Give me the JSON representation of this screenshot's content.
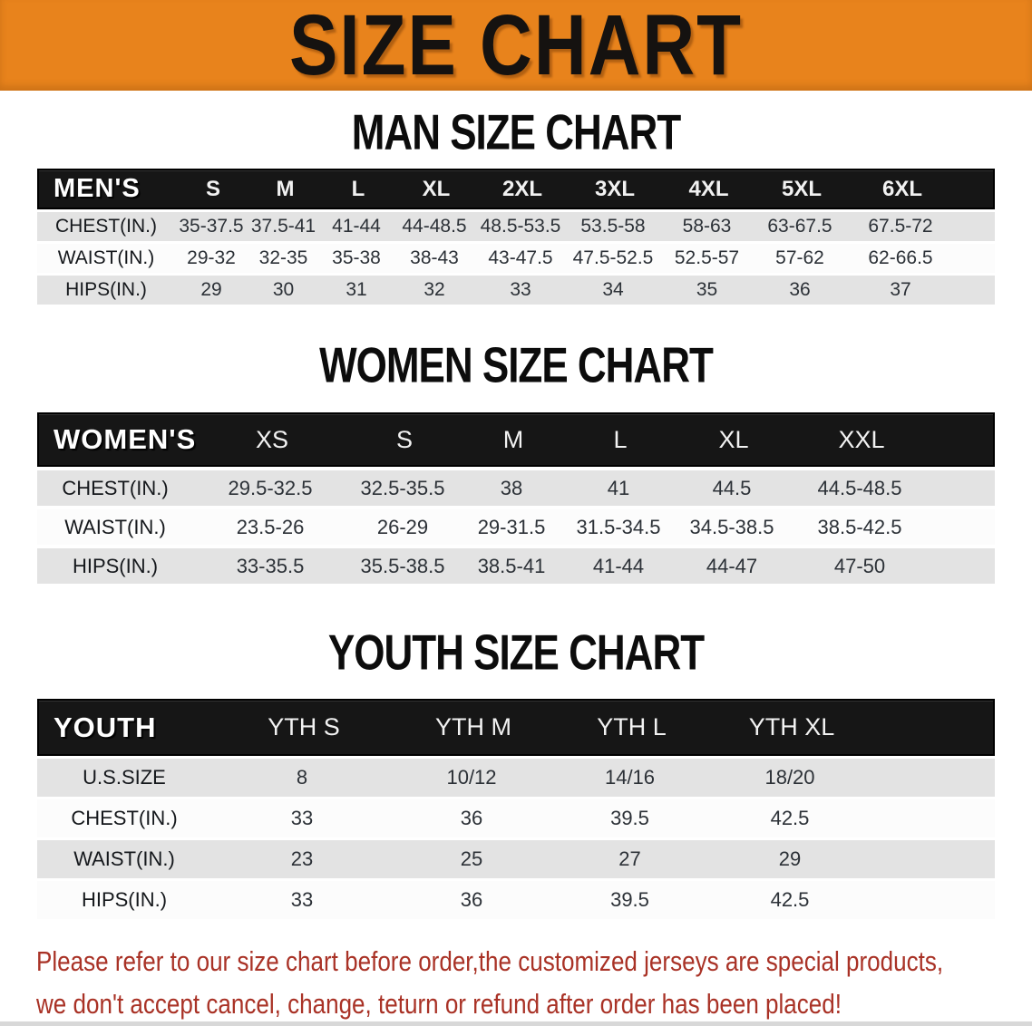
{
  "banner": {
    "title": "SIZE CHART"
  },
  "sections": [
    {
      "id": "men",
      "heading": "MAN SIZE CHART",
      "label": "MEN'S",
      "columns": [
        "S",
        "M",
        "L",
        "XL",
        "2XL",
        "3XL",
        "4XL",
        "5XL",
        "6XL"
      ],
      "rows": [
        {
          "label": "CHEST(IN.)",
          "values": [
            "35-37.5",
            "37.5-41",
            "41-44",
            "44-48.5",
            "48.5-53.5",
            "53.5-58",
            "58-63",
            "63-67.5",
            "67.5-72"
          ]
        },
        {
          "label": "WAIST(IN.)",
          "values": [
            "29-32",
            "32-35",
            "35-38",
            "38-43",
            "43-47.5",
            "47.5-52.5",
            "52.5-57",
            "57-62",
            "62-66.5"
          ]
        },
        {
          "label": "HIPS(IN.)",
          "values": [
            "29",
            "30",
            "31",
            "32",
            "33",
            "34",
            "35",
            "36",
            "37"
          ]
        }
      ]
    },
    {
      "id": "women",
      "heading": "WOMEN SIZE CHART",
      "label": "WOMEN'S",
      "columns": [
        "XS",
        "S",
        "M",
        "L",
        "XL",
        "XXL"
      ],
      "rows": [
        {
          "label": "CHEST(IN.)",
          "values": [
            "29.5-32.5",
            "32.5-35.5",
            "38",
            "41",
            "44.5",
            "44.5-48.5"
          ]
        },
        {
          "label": "WAIST(IN.)",
          "values": [
            "23.5-26",
            "26-29",
            "29-31.5",
            "31.5-34.5",
            "34.5-38.5",
            "38.5-42.5"
          ]
        },
        {
          "label": "HIPS(IN.)",
          "values": [
            "33-35.5",
            "35.5-38.5",
            "38.5-41",
            "41-44",
            "44-47",
            "47-50"
          ]
        }
      ]
    },
    {
      "id": "youth",
      "heading": "YOUTH SIZE CHART",
      "label": "YOUTH",
      "columns": [
        "YTH S",
        "YTH M",
        "YTH L",
        "YTH XL"
      ],
      "rows": [
        {
          "label": "U.S.SIZE",
          "values": [
            "8",
            "10/12",
            "14/16",
            "18/20"
          ]
        },
        {
          "label": "CHEST(IN.)",
          "values": [
            "33",
            "36",
            "39.5",
            "42.5"
          ]
        },
        {
          "label": "WAIST(IN.)",
          "values": [
            "23",
            "25",
            "27",
            "29"
          ]
        },
        {
          "label": "HIPS(IN.)",
          "values": [
            "33",
            "36",
            "39.5",
            "42.5"
          ]
        }
      ]
    }
  ],
  "footer": {
    "lines": [
      "Please refer to our size chart before order,the customized jerseys are special products,",
      "we don't accept cancel, change, teturn or refund after order has been placed!"
    ]
  },
  "colors": {
    "banner_bg": "#E8831C",
    "banner_text": "#151210",
    "table_header_bg": "#161616",
    "table_header_text": "#FFFFFF",
    "row_shade": "#E3E3E3",
    "row_light": "#FCFCFC",
    "data_text": "#2C3137",
    "notice_text": "#A93226"
  }
}
